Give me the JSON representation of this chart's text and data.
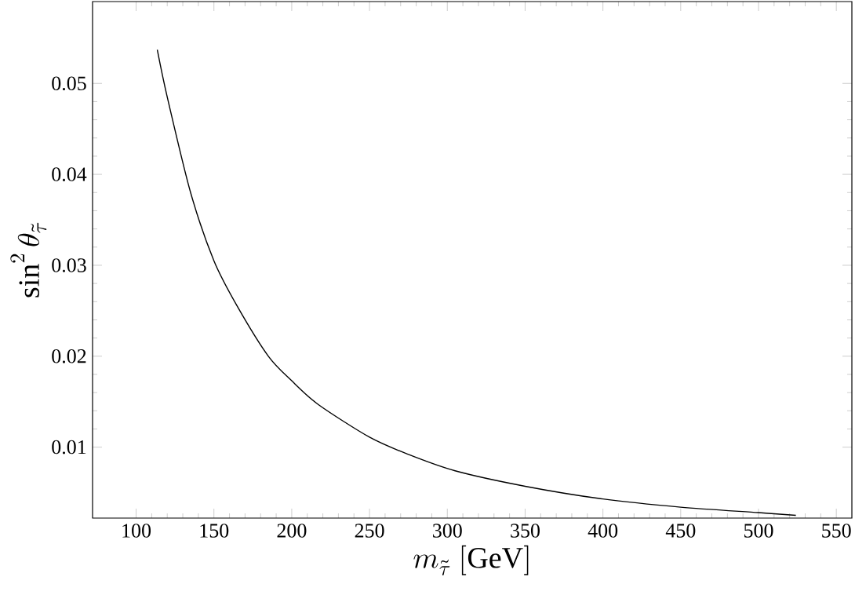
{
  "chart_data": {
    "type": "line",
    "xlabel": "m_{\\tilde{\\tau}}\\ [\\mathrm{GeV}]",
    "ylabel": "\\sin^2\\theta_{\\tilde{\\tau}}",
    "x": [
      113.6,
      120,
      135,
      150,
      165,
      185,
      200,
      217,
      250,
      275,
      305,
      350,
      400,
      450,
      500,
      524
    ],
    "series": [
      {
        "color": "#000000",
        "values": [
          0.0537,
          0.0485,
          0.038,
          0.0305,
          0.0255,
          0.02,
          0.0173,
          0.0147,
          0.0111,
          0.0092,
          0.0074,
          0.0057,
          0.0043,
          0.0034,
          0.0028,
          0.0025
        ]
      }
    ],
    "xlim": [
      72,
      560
    ],
    "ylim": [
      0.0022,
      0.059
    ],
    "xticks": [
      100,
      150,
      200,
      250,
      300,
      350,
      400,
      450,
      500,
      550
    ],
    "yticks": [
      0.01,
      0.02,
      0.03,
      0.04,
      0.05
    ],
    "marker": "none",
    "line_style": "solid"
  }
}
